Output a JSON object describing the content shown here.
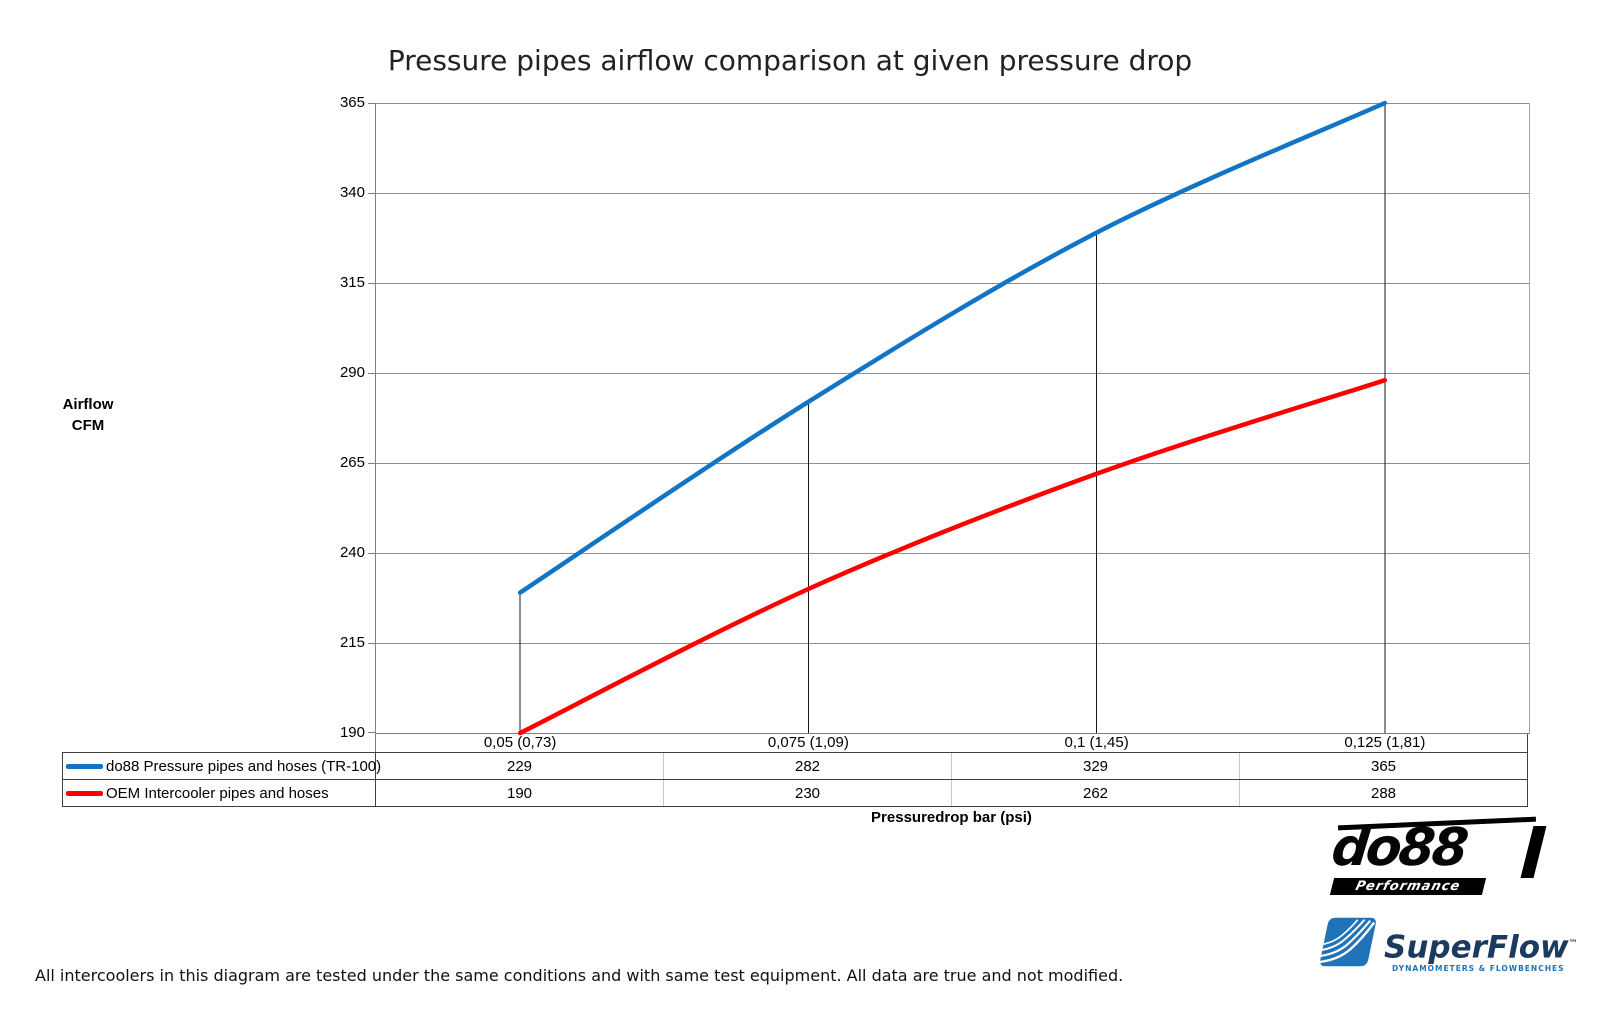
{
  "title": "Pressure pipes airflow comparison at given pressure drop",
  "chart_data": {
    "type": "line",
    "title": "Pressure pipes airflow comparison at given pressure drop",
    "categories": [
      "0,05 (0,73)",
      "0,075 (1,09)",
      "0,1 (1,45)",
      "0,125 (1,81)"
    ],
    "series": [
      {
        "name": "do88 Pressure pipes and hoses (TR-100)",
        "color": "#1274c5",
        "values": [
          229,
          282,
          329,
          365
        ]
      },
      {
        "name": "OEM Intercooler pipes and hoses",
        "color": "#ff0000",
        "values": [
          190,
          230,
          262,
          288
        ]
      }
    ],
    "xlabel": "Pressuredrop bar (psi)",
    "ylabel": "Airflow CFM",
    "ylim": [
      190,
      365
    ],
    "yticks": [
      190,
      215,
      240,
      265,
      290,
      315,
      340,
      365
    ],
    "grid": true,
    "drop_lines": true,
    "smoothed": true,
    "legend_position": "table-left"
  },
  "axis": {
    "ylabel_lines": [
      "Airflow",
      "CFM"
    ],
    "xlabel": "Pressuredrop bar (psi)"
  },
  "footer": {
    "note": "All intercoolers in this diagram are tested under the same conditions and with same test equipment. All data are true and not modified."
  },
  "logos": {
    "do88": {
      "name": "do88",
      "tagline": "Performance"
    },
    "superflow": {
      "name": "SuperFlow",
      "trademark": "™",
      "tagline": "DYNAMOMETERS & FLOWBENCHES"
    }
  }
}
